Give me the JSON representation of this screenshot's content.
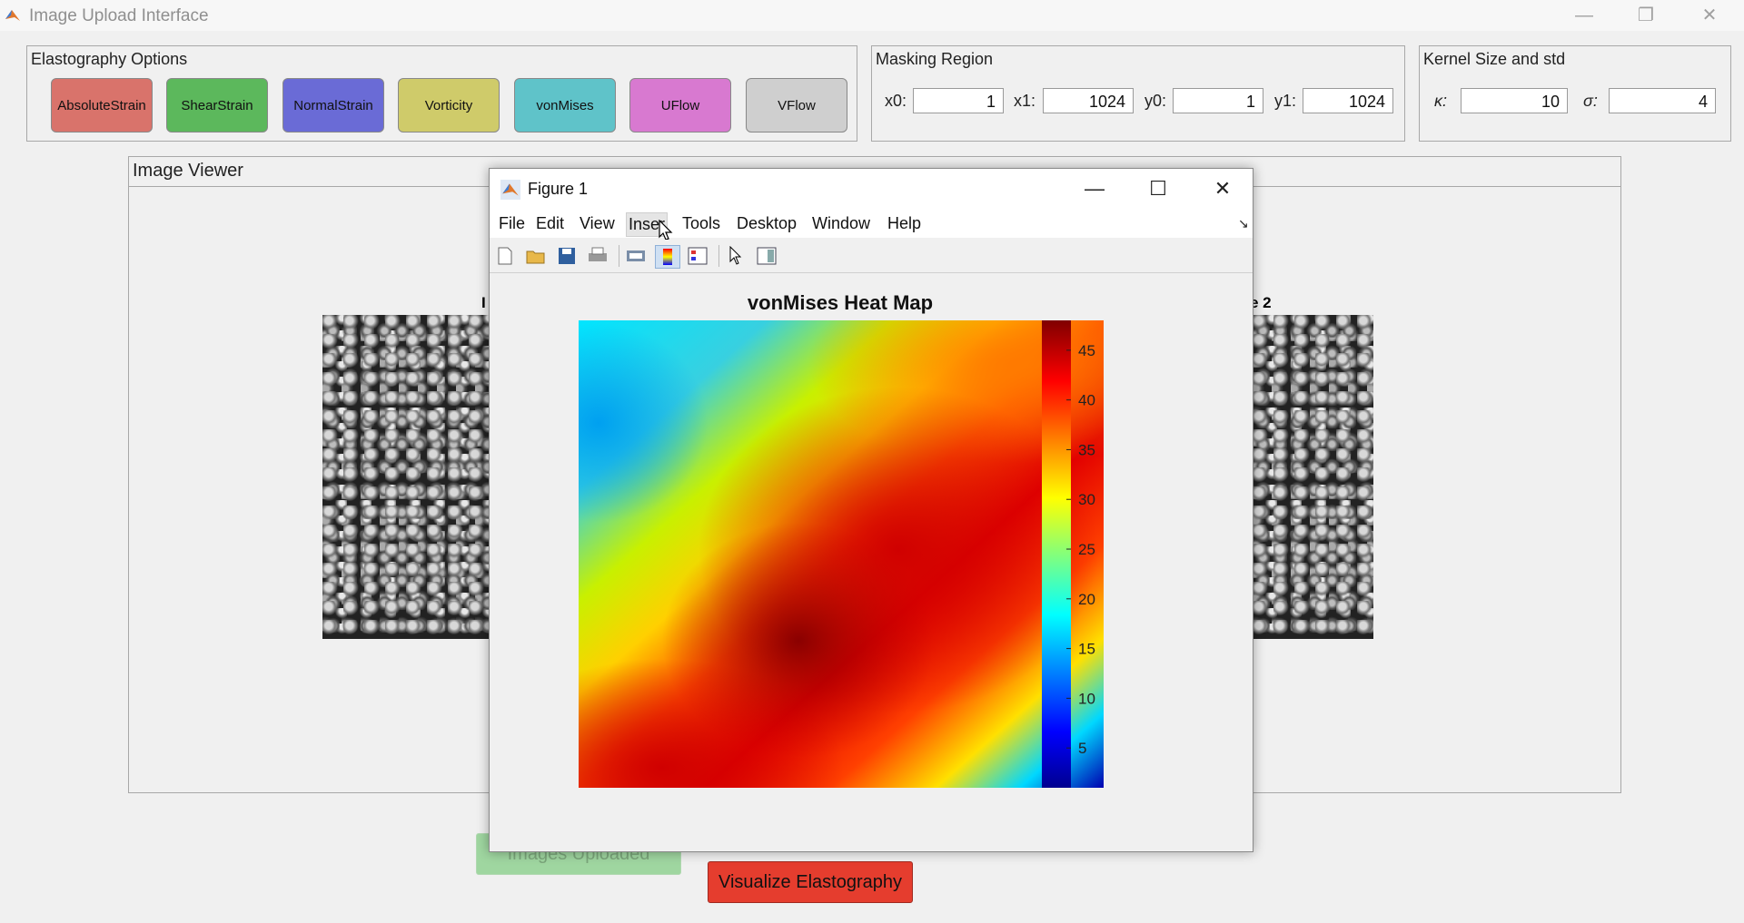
{
  "app": {
    "title": "Image Upload Interface",
    "controls": {
      "minimize": "—",
      "restore": "❐",
      "close": "✕"
    }
  },
  "elastography": {
    "title": "Elastography Options",
    "buttons": [
      {
        "label": "AbsoluteStrain",
        "color": "#d9736b"
      },
      {
        "label": "ShearStrain",
        "color": "#5cb85c"
      },
      {
        "label": "NormalStrain",
        "color": "#6a6bd6"
      },
      {
        "label": "Vorticity",
        "color": "#cfcb6a"
      },
      {
        "label": "vonMises",
        "color": "#5fc3c9"
      },
      {
        "label": "UFlow",
        "color": "#d879d0"
      },
      {
        "label": "VFlow",
        "color": "#cfcfcf"
      }
    ]
  },
  "masking": {
    "title": "Masking Region",
    "fields": [
      {
        "label": "x0:",
        "value": "1"
      },
      {
        "label": "x1:",
        "value": "1024"
      },
      {
        "label": "y0:",
        "value": "1"
      },
      {
        "label": "y1:",
        "value": "1024"
      }
    ]
  },
  "kernel": {
    "title": "Kernel Size and std",
    "fields": [
      {
        "label": "κ:",
        "value": "10"
      },
      {
        "label": "σ:",
        "value": "4"
      }
    ]
  },
  "viewer": {
    "title": "Image Viewer",
    "left_label_fragment": "I",
    "right_label_fragment": "e 2"
  },
  "figure": {
    "title": "Figure 1",
    "controls": {
      "minimize": "—",
      "maximize": "☐",
      "close": "✕"
    },
    "menu": [
      "File",
      "Edit",
      "View",
      "Inser",
      "Tools",
      "Desktop",
      "Window",
      "Help"
    ],
    "toolbar_icons": [
      "new-figure-icon",
      "open-file-icon",
      "save-icon",
      "print-icon",
      "print-preview-icon",
      "colorbar-icon",
      "legend-icon",
      "pointer-icon",
      "property-editor-icon"
    ]
  },
  "chart_data": {
    "type": "heatmap",
    "title": "vonMises Heat Map",
    "colormap": "jet",
    "colorbar": {
      "ticks": [
        5,
        10,
        15,
        20,
        25,
        30,
        35,
        40,
        45
      ],
      "range": [
        1,
        48
      ]
    },
    "grid": false
  },
  "bottom": {
    "images_uploaded": "Images Uploaded",
    "visualize": "Visualize Elastography"
  }
}
